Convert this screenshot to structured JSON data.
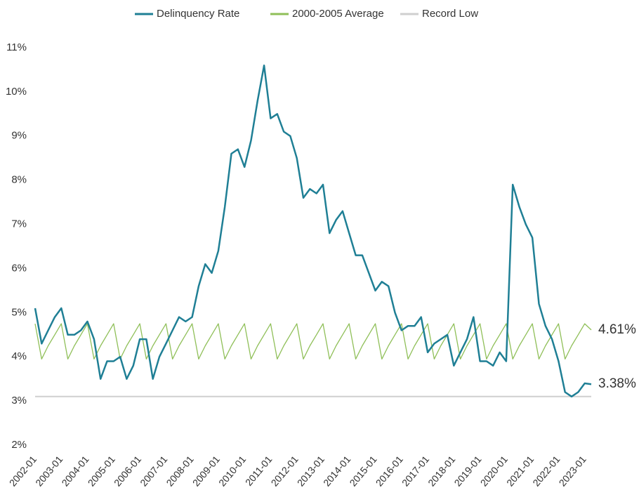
{
  "chart_data": {
    "type": "line",
    "x": [
      2002,
      2002.25,
      2002.5,
      2002.75,
      2003,
      2003.25,
      2003.5,
      2003.75,
      2004,
      2004.25,
      2004.5,
      2004.75,
      2005,
      2005.25,
      2005.5,
      2005.75,
      2006,
      2006.25,
      2006.5,
      2006.75,
      2007,
      2007.25,
      2007.5,
      2007.75,
      2008,
      2008.25,
      2008.5,
      2008.75,
      2009,
      2009.25,
      2009.5,
      2009.75,
      2010,
      2010.25,
      2010.5,
      2010.75,
      2011,
      2011.25,
      2011.5,
      2011.75,
      2012,
      2012.25,
      2012.5,
      2012.75,
      2013,
      2013.25,
      2013.5,
      2013.75,
      2014,
      2014.25,
      2014.5,
      2014.75,
      2015,
      2015.25,
      2015.5,
      2015.75,
      2016,
      2016.25,
      2016.5,
      2016.75,
      2017,
      2017.25,
      2017.5,
      2017.75,
      2018,
      2018.25,
      2018.5,
      2018.75,
      2019,
      2019.25,
      2019.5,
      2019.75,
      2020,
      2020.25,
      2020.5,
      2020.75,
      2021,
      2021.25,
      2021.5,
      2021.75,
      2022,
      2022.25,
      2022.5,
      2022.75,
      2023,
      2023.25
    ],
    "series": [
      {
        "name": "Delinquency Rate",
        "color": "#1f7f95",
        "values": [
          5.1,
          4.3,
          4.6,
          4.9,
          5.1,
          4.5,
          4.5,
          4.6,
          4.8,
          4.4,
          3.5,
          3.9,
          3.9,
          4.0,
          3.5,
          3.8,
          4.4,
          4.4,
          3.5,
          4.0,
          4.3,
          4.6,
          4.9,
          4.8,
          4.9,
          5.6,
          6.1,
          5.9,
          6.4,
          7.4,
          8.6,
          8.7,
          8.3,
          8.9,
          9.8,
          10.6,
          9.4,
          9.5,
          9.1,
          9.0,
          8.5,
          7.6,
          7.8,
          7.7,
          7.9,
          6.8,
          7.1,
          7.3,
          6.8,
          6.3,
          6.3,
          5.9,
          5.5,
          5.7,
          5.6,
          5.0,
          4.6,
          4.7,
          4.7,
          4.9,
          4.1,
          4.3,
          4.4,
          4.5,
          3.8,
          4.1,
          4.4,
          4.9,
          3.9,
          3.9,
          3.8,
          4.1,
          3.9,
          7.9,
          7.4,
          7.0,
          6.7,
          5.2,
          4.7,
          4.4,
          3.9,
          3.2,
          3.1,
          3.2,
          3.4,
          3.38
        ]
      },
      {
        "name": "2000-2005 Average",
        "color": "#8fbf58",
        "values": [
          4.75,
          3.95,
          4.25,
          4.5,
          4.75,
          3.95,
          4.25,
          4.5,
          4.75,
          3.95,
          4.25,
          4.5,
          4.75,
          3.95,
          4.25,
          4.5,
          4.75,
          3.95,
          4.25,
          4.5,
          4.75,
          3.95,
          4.25,
          4.5,
          4.75,
          3.95,
          4.25,
          4.5,
          4.75,
          3.95,
          4.25,
          4.5,
          4.75,
          3.95,
          4.25,
          4.5,
          4.75,
          3.95,
          4.25,
          4.5,
          4.75,
          3.95,
          4.25,
          4.5,
          4.75,
          3.95,
          4.25,
          4.5,
          4.75,
          3.95,
          4.25,
          4.5,
          4.75,
          3.95,
          4.25,
          4.5,
          4.75,
          3.95,
          4.25,
          4.5,
          4.75,
          3.95,
          4.25,
          4.5,
          4.75,
          3.95,
          4.25,
          4.5,
          4.75,
          3.95,
          4.25,
          4.5,
          4.75,
          3.95,
          4.25,
          4.5,
          4.75,
          3.95,
          4.25,
          4.5,
          4.75,
          3.95,
          4.25,
          4.5,
          4.75,
          4.61
        ]
      },
      {
        "name": "Record Low",
        "color": "#cfcfcf",
        "values": [
          3.1,
          3.1,
          3.1,
          3.1,
          3.1,
          3.1,
          3.1,
          3.1,
          3.1,
          3.1,
          3.1,
          3.1,
          3.1,
          3.1,
          3.1,
          3.1,
          3.1,
          3.1,
          3.1,
          3.1,
          3.1,
          3.1,
          3.1,
          3.1,
          3.1,
          3.1,
          3.1,
          3.1,
          3.1,
          3.1,
          3.1,
          3.1,
          3.1,
          3.1,
          3.1,
          3.1,
          3.1,
          3.1,
          3.1,
          3.1,
          3.1,
          3.1,
          3.1,
          3.1,
          3.1,
          3.1,
          3.1,
          3.1,
          3.1,
          3.1,
          3.1,
          3.1,
          3.1,
          3.1,
          3.1,
          3.1,
          3.1,
          3.1,
          3.1,
          3.1,
          3.1,
          3.1,
          3.1,
          3.1,
          3.1,
          3.1,
          3.1,
          3.1,
          3.1,
          3.1,
          3.1,
          3.1,
          3.1,
          3.1,
          3.1,
          3.1,
          3.1,
          3.1,
          3.1,
          3.1,
          3.1,
          3.1,
          3.1,
          3.1,
          3.1,
          3.1
        ]
      }
    ],
    "annotations": [
      {
        "label": "4.61%",
        "value": 4.61,
        "color": "#8fbf58"
      },
      {
        "label": "3.38%",
        "value": 3.38,
        "color": "#1f7f95"
      }
    ],
    "xlim": [
      2002,
      2023.25
    ],
    "xticks": [
      {
        "value": 2002,
        "label": "2002-01"
      },
      {
        "value": 2003,
        "label": "2003-01"
      },
      {
        "value": 2004,
        "label": "2004-01"
      },
      {
        "value": 2005,
        "label": "2005-01"
      },
      {
        "value": 2006,
        "label": "2006-01"
      },
      {
        "value": 2007,
        "label": "2007-01"
      },
      {
        "value": 2008,
        "label": "2008-01"
      },
      {
        "value": 2009,
        "label": "2009-01"
      },
      {
        "value": 2010,
        "label": "2010-01"
      },
      {
        "value": 2011,
        "label": "2011-01"
      },
      {
        "value": 2012,
        "label": "2012-01"
      },
      {
        "value": 2013,
        "label": "2013-01"
      },
      {
        "value": 2014,
        "label": "2014-01"
      },
      {
        "value": 2015,
        "label": "2015-01"
      },
      {
        "value": 2016,
        "label": "2016-01"
      },
      {
        "value": 2017,
        "label": "2017-01"
      },
      {
        "value": 2018,
        "label": "2018-01"
      },
      {
        "value": 2019,
        "label": "2019-01"
      },
      {
        "value": 2020,
        "label": "2020-01"
      },
      {
        "value": 2021,
        "label": "2021-01"
      },
      {
        "value": 2022,
        "label": "2022-01"
      },
      {
        "value": 2023,
        "label": "2023-01"
      }
    ],
    "ylim": [
      2,
      11
    ],
    "yticks": [
      {
        "value": 2,
        "label": "2%"
      },
      {
        "value": 3,
        "label": "3%"
      },
      {
        "value": 4,
        "label": "4%"
      },
      {
        "value": 5,
        "label": "5%"
      },
      {
        "value": 6,
        "label": "6%"
      },
      {
        "value": 7,
        "label": "7%"
      },
      {
        "value": 8,
        "label": "8%"
      },
      {
        "value": 9,
        "label": "9%"
      },
      {
        "value": 10,
        "label": "10%"
      },
      {
        "value": 11,
        "label": "11%"
      }
    ],
    "grid": false,
    "legend": "top"
  }
}
